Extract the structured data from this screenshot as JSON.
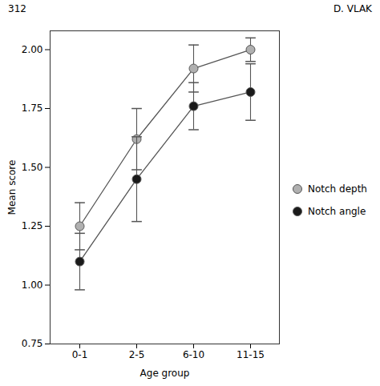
{
  "chart_data": {
    "type": "line",
    "xlabel": "Age group",
    "ylabel": "Mean score",
    "categories": [
      "0-1",
      "2-5",
      "6-10",
      "11-15"
    ],
    "color": "#555555",
    "marker": "circle",
    "series": [
      {
        "name": "Notch depth",
        "color": "#b0b0b0",
        "values": [
          1.25,
          1.62,
          1.92,
          2.0
        ],
        "errors": [
          0.1,
          0.13,
          0.1,
          0.05
        ]
      },
      {
        "name": "Notch angle",
        "color": "#1a1a1a",
        "values": [
          1.1,
          1.45,
          1.76,
          1.82
        ],
        "errors": [
          0.12,
          0.18,
          0.1,
          0.12
        ]
      }
    ],
    "ylim": [
      0.75,
      2.08
    ],
    "yticks": [
      0.75,
      {
        "value": 1,
        "label": "1.00"
      },
      1.25,
      {
        "value": 1.5,
        "label": "1.50"
      },
      1.75,
      {
        "value": 2,
        "label": "2.00"
      }
    ],
    "grid": false,
    "legend": "right",
    "annotations": [
      "312",
      "D. VLAK"
    ]
  }
}
